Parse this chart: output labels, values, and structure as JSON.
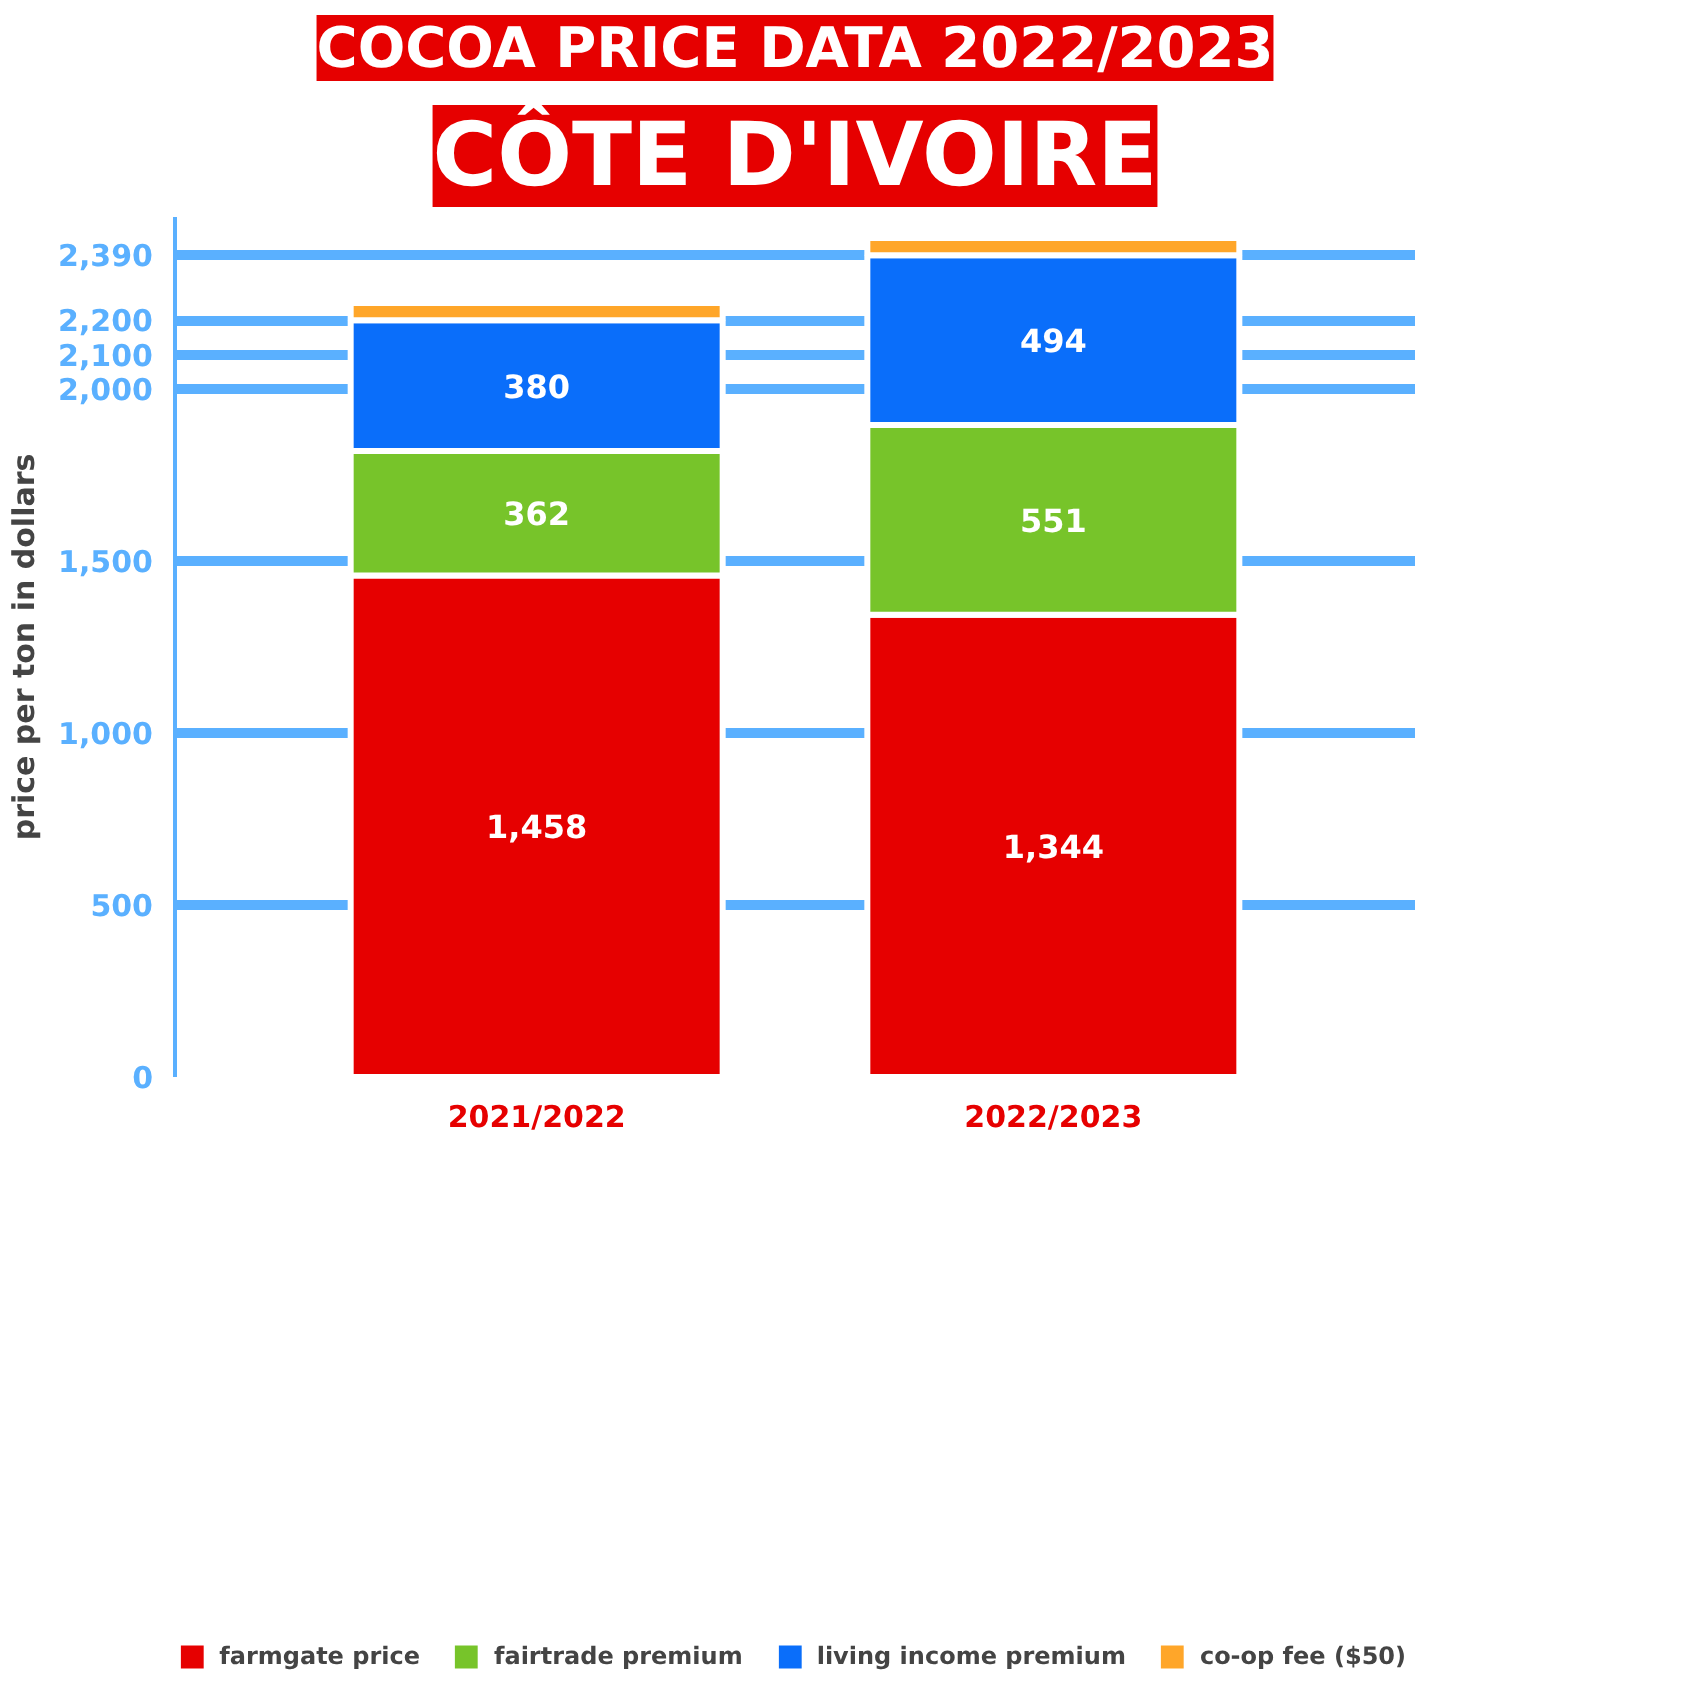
{
  "chart_data": {
    "type": "bar",
    "title": "COCOA PRICE DATA 2022/2023",
    "subtitle": "CÔTE D'IVOIRE",
    "ylabel": "price per ton in dollars",
    "categories": [
      "2021/2022",
      "2022/2023"
    ],
    "stacked": true,
    "series": [
      {
        "name": "farmgate price",
        "color": "#e60000",
        "values": [
          1458,
          1344
        ],
        "value_labels": [
          "1,458",
          "1,344"
        ]
      },
      {
        "name": "fairtrade premium",
        "color": "#77c42a",
        "values": [
          362,
          551
        ],
        "value_labels": [
          "362",
          "551"
        ]
      },
      {
        "name": "living income premium",
        "color": "#0a6efa",
        "values": [
          380,
          494
        ],
        "value_labels": [
          "380",
          "494"
        ]
      },
      {
        "name": "co-op fee ($50)",
        "color": "#ffa629",
        "values": [
          50,
          50
        ]
      }
    ],
    "ylim": [
      0,
      2500
    ],
    "yticks": [
      0,
      500,
      {
        "value": 1000,
        "label": "1,000"
      },
      {
        "value": 1500,
        "label": "1,500"
      },
      {
        "value": 2000,
        "label": "2,000"
      },
      {
        "value": 2100,
        "label": "2,100"
      },
      {
        "value": 2200,
        "label": "2,200"
      },
      {
        "value": 2390,
        "label": "2,390"
      }
    ],
    "grid": "y",
    "legend": "bottom"
  }
}
